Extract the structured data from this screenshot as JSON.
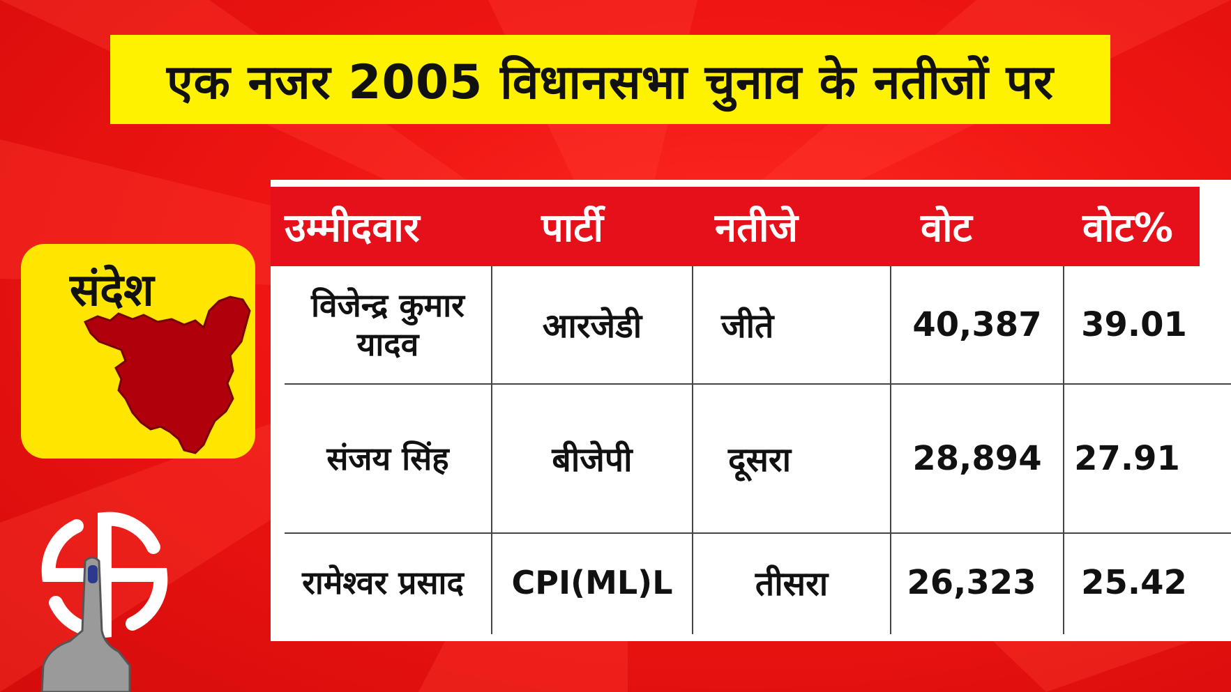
{
  "title": "एक नजर 2005 विधानसभा चुनाव के नतीजों पर",
  "constituency": "संदेश",
  "icons": {
    "map": "constituency-map-icon",
    "election_symbol": "election-symbol-icon",
    "voting_finger": "inked-finger-icon"
  },
  "colors": {
    "background": "#ef1512",
    "banner": "#fff200",
    "header": "#e6101a",
    "map": "#b0000b"
  },
  "table": {
    "headers": [
      "उम्मीदवार",
      "पार्टी",
      "नतीजे",
      "वोट",
      "वोट%"
    ],
    "rows": [
      {
        "candidate": "विजेन्द्र कुमार यादव",
        "party": "आरजेडी",
        "result": "जीते",
        "votes": "40,387",
        "vote_pct": "39.01"
      },
      {
        "candidate": "संजय सिंह",
        "party": "बीजेपी",
        "result": "दूसरा",
        "votes": "28,894",
        "vote_pct": "27.91"
      },
      {
        "candidate": "रामेश्वर प्रसाद",
        "party": "CPI(ML)L",
        "result": "तीसरा",
        "votes": "26,323",
        "vote_pct": "25.42"
      }
    ]
  }
}
